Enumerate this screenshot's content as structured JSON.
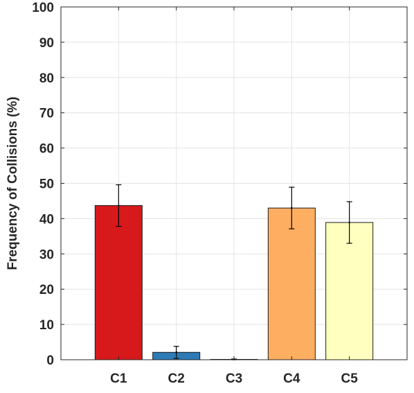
{
  "chart_data": {
    "type": "bar",
    "title": "",
    "xlabel": "",
    "ylabel": "Frequency of Collisions (%)",
    "categories": [
      "C1",
      "C2",
      "C3",
      "C4",
      "C5"
    ],
    "values": [
      43.7,
      2.1,
      0.1,
      43.0,
      38.9
    ],
    "error": [
      5.9,
      1.7,
      0.1,
      5.9,
      5.9
    ],
    "colors": [
      "#d7191c",
      "#2c7bb6",
      "#ffffff",
      "#fdae61",
      "#ffffbf"
    ],
    "ylim": [
      0,
      100
    ],
    "yticks": [
      0,
      10,
      20,
      30,
      40,
      50,
      60,
      70,
      80,
      90,
      100
    ],
    "grid": true,
    "legend": "none"
  }
}
